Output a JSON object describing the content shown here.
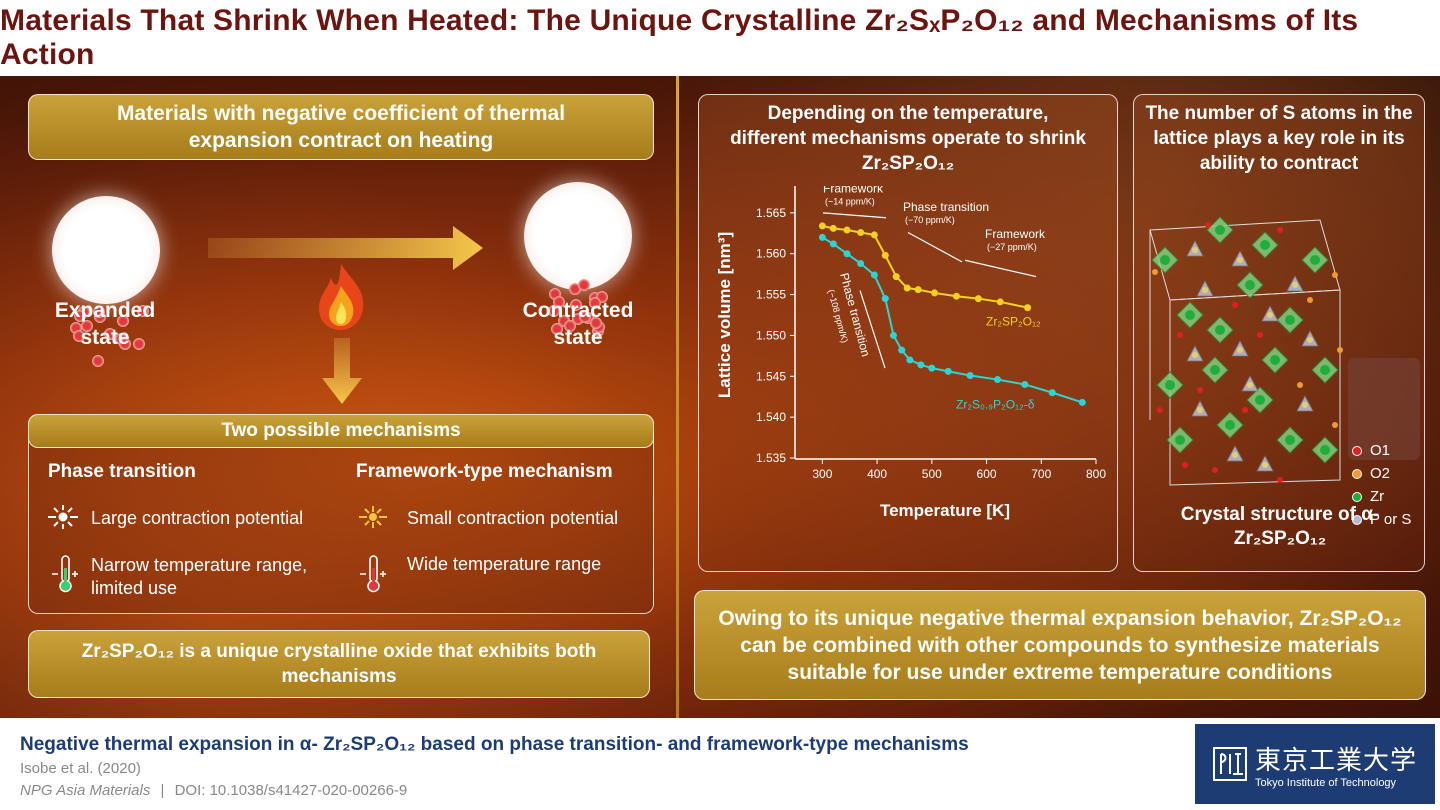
{
  "title": "Materials That Shrink When Heated: The Unique Crystalline Zr₂SₓP₂O₁₂ and Mechanisms of Its Action",
  "left": {
    "header": "Materials with negative coefficient of thermal expansion contract on heating",
    "expanded": "Expanded state",
    "contracted": "Contracted state",
    "mechanisms_title": "Two possible mechanisms",
    "col1_title": "Phase transition",
    "col1_item1": "Large contraction potential",
    "col1_item2": "Narrow temperature range, limited use",
    "col2_title": "Framework-type mechanism",
    "col2_item1": "Small contraction potential",
    "col2_item2": "Wide temperature range",
    "footer_box": "Zr₂SP₂O₁₂ is a unique crystalline oxide that exhibits both mechanisms"
  },
  "chart_panel": {
    "title": "Depending on the temperature, different mechanisms operate to shrink Zr₂SP₂O₁₂"
  },
  "chart_data": {
    "type": "scatter",
    "xlabel": "Temperature [K]",
    "ylabel": "Lattice volume [nm³]",
    "xlim": [
      250,
      800
    ],
    "ylim": [
      1.535,
      1.57
    ],
    "xticks": [
      "300",
      "400",
      "500",
      "600",
      "700",
      "800"
    ],
    "yticks": [
      "1.535",
      "1.540",
      "1.545",
      "1.550",
      "1.555",
      "1.560",
      "1.565",
      "1.570"
    ],
    "series": [
      {
        "name": "Zr₂SP₂O₁₂",
        "color": "#f2d21e",
        "x": [
          300,
          320,
          345,
          370,
          395,
          415,
          435,
          455,
          475,
          505,
          545,
          585,
          625,
          675
        ],
        "y": [
          1.5634,
          1.5631,
          1.5629,
          1.5626,
          1.5623,
          1.5598,
          1.5572,
          1.5558,
          1.5556,
          1.5552,
          1.5548,
          1.5545,
          1.5541,
          1.5534
        ]
      },
      {
        "name": "Zr₂S₀.₉P₂O₁₂-δ",
        "color": "#2ed4d4",
        "x": [
          300,
          320,
          345,
          370,
          395,
          415,
          430,
          445,
          460,
          480,
          500,
          530,
          570,
          620,
          670,
          720,
          775
        ],
        "y": [
          1.562,
          1.5612,
          1.56,
          1.5588,
          1.5574,
          1.5545,
          1.55,
          1.5482,
          1.547,
          1.5464,
          1.546,
          1.5456,
          1.5451,
          1.5446,
          1.544,
          1.543,
          1.5418
        ]
      }
    ],
    "annotations": [
      {
        "text": "Framework",
        "sub": "(−14 ppm/K)"
      },
      {
        "text": "Phase transition",
        "sub": "(−70 ppm/K)"
      },
      {
        "text": "Framework",
        "sub": "(−27 ppm/K)"
      },
      {
        "text": "Phase transition",
        "sub": "(−108 ppm/K)"
      }
    ]
  },
  "crystal_panel": {
    "title": "The number of S atoms in the lattice plays a key role in its ability to contract",
    "caption": "Crystal structure of α-Zr₂SP₂O₁₂",
    "legend": [
      "O1",
      "O2",
      "Zr",
      "P or S"
    ]
  },
  "bottom_right": "Owing to its unique negative thermal expansion behavior, Zr₂SP₂O₁₂ can be combined with other compounds to synthesize materials suitable for use under extreme temperature conditions",
  "footer": {
    "paper_title": "Negative thermal expansion in α- Zr₂SP₂O₁₂ based on phase transition- and framework-type mechanisms",
    "authors": "Isobe et al. (2020)",
    "journal": "NPG Asia Materials",
    "separator": "|",
    "doi_label": "DOI:",
    "doi": "10.1038/s41427-020-00266-9",
    "logo_kanji": "東京工業大学",
    "logo_en": "Tokyo Institute of Technology"
  }
}
